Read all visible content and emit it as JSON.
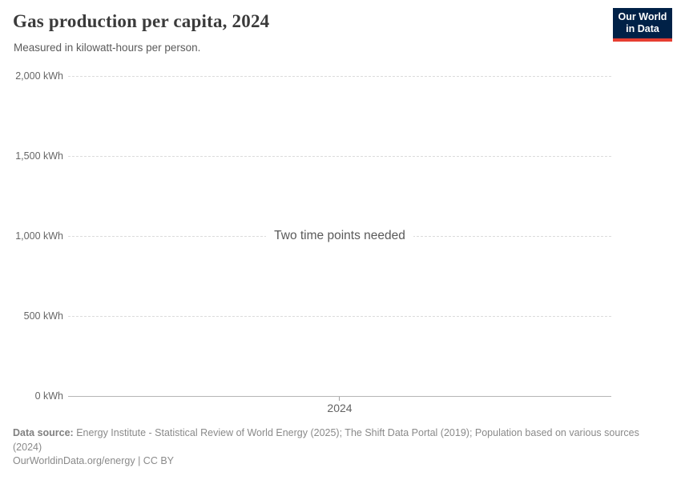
{
  "header": {
    "title": "Gas production per capita, 2024",
    "subtitle": "Measured in kilowatt-hours per person.",
    "logo": {
      "line1": "Our World",
      "line2": "in Data",
      "background_color": "#002147",
      "accent_color": "#e63e31"
    }
  },
  "chart_data": {
    "type": "line",
    "title": "Gas production per capita, 2024",
    "subtitle": "Measured in kilowatt-hours per person.",
    "unit": "kilowatt-hours per person",
    "series": [],
    "empty_state_message": "Two time points needed",
    "ylim": [
      0,
      2000
    ],
    "ytick_values": [
      0,
      500,
      1000,
      1500,
      2000
    ],
    "ytick_labels": [
      "0 kWh",
      "500 kWh",
      "1,000 kWh",
      "1,500 kWh",
      "2,000 kWh"
    ],
    "xtick_labels": [
      "2024"
    ],
    "grid": "horizontal dashed gridlines, solid baseline at 0",
    "legend_position": "none"
  },
  "footer": {
    "data_source_label": "Data source:",
    "data_source_text": " Energy Institute - Statistical Review of World Energy (2025); The Shift Data Portal (2019); Population based on various sources (2024)",
    "credit": "OurWorldinData.org/energy | CC BY"
  }
}
